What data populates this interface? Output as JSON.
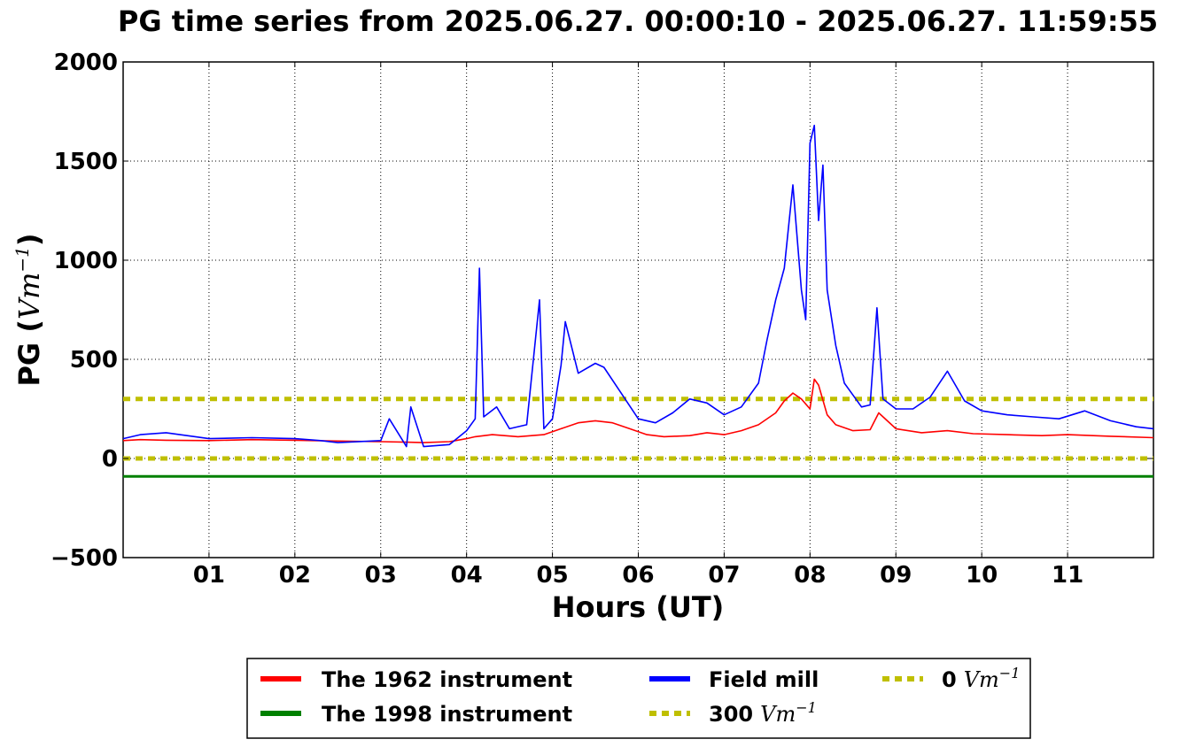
{
  "chart_data": {
    "type": "line",
    "title": "PG time series from 2025.06.27. 00:00:10 - 2025.06.27. 11:59:55",
    "xlabel": "Hours (UT)",
    "ylabel": {
      "main": "PG (",
      "unit_base": "Vm",
      "unit_exp": "−1",
      "close": ")"
    },
    "xlim": [
      0,
      12
    ],
    "ylim": [
      -500,
      2000
    ],
    "x_ticks": [
      1,
      2,
      3,
      4,
      5,
      6,
      7,
      8,
      9,
      10,
      11
    ],
    "x_tick_labels": [
      "01",
      "02",
      "03",
      "04",
      "05",
      "06",
      "07",
      "08",
      "09",
      "10",
      "11"
    ],
    "y_ticks": [
      -500,
      0,
      500,
      1000,
      1500,
      2000
    ],
    "y_tick_labels": [
      "−500",
      "0",
      "500",
      "1000",
      "1500",
      "2000"
    ],
    "grid": true,
    "legend_placement": "below",
    "series": [
      {
        "name": "The 1962 instrument",
        "color": "#ff0000",
        "x": [
          0.0,
          0.2,
          0.5,
          1.0,
          1.5,
          2.0,
          2.5,
          3.0,
          3.3,
          3.5,
          3.8,
          4.0,
          4.1,
          4.3,
          4.6,
          4.9,
          5.1,
          5.3,
          5.5,
          5.7,
          5.9,
          6.1,
          6.3,
          6.6,
          6.8,
          7.0,
          7.2,
          7.4,
          7.6,
          7.7,
          7.8,
          7.9,
          8.0,
          8.05,
          8.1,
          8.2,
          8.3,
          8.5,
          8.7,
          8.8,
          9.0,
          9.3,
          9.6,
          9.9,
          10.3,
          10.7,
          11.0,
          11.5,
          12.0
        ],
        "values": [
          90,
          95,
          92,
          90,
          95,
          92,
          88,
          85,
          82,
          80,
          85,
          100,
          110,
          120,
          110,
          120,
          150,
          180,
          190,
          180,
          150,
          120,
          110,
          115,
          130,
          120,
          140,
          170,
          230,
          290,
          330,
          300,
          250,
          400,
          370,
          220,
          170,
          140,
          145,
          230,
          150,
          130,
          140,
          125,
          120,
          115,
          120,
          112,
          105
        ]
      },
      {
        "name": "The 1998 instrument",
        "color": "#008000",
        "x": [
          0,
          12
        ],
        "values": [
          -90,
          -90
        ]
      },
      {
        "name": "Field mill",
        "color": "#0000ff",
        "x": [
          0.0,
          0.2,
          0.5,
          1.0,
          1.5,
          2.0,
          2.3,
          2.5,
          3.0,
          3.1,
          3.3,
          3.35,
          3.5,
          3.8,
          4.0,
          4.1,
          4.15,
          4.2,
          4.35,
          4.5,
          4.7,
          4.85,
          4.9,
          5.0,
          5.1,
          5.15,
          5.3,
          5.5,
          5.6,
          5.8,
          6.0,
          6.2,
          6.4,
          6.6,
          6.8,
          7.0,
          7.2,
          7.4,
          7.5,
          7.6,
          7.7,
          7.8,
          7.9,
          7.95,
          8.0,
          8.05,
          8.1,
          8.15,
          8.2,
          8.3,
          8.4,
          8.5,
          8.6,
          8.7,
          8.78,
          8.85,
          9.0,
          9.2,
          9.4,
          9.6,
          9.8,
          10.0,
          10.3,
          10.6,
          10.9,
          11.2,
          11.5,
          11.8,
          12.0
        ],
        "values": [
          100,
          120,
          130,
          100,
          105,
          100,
          90,
          80,
          90,
          200,
          60,
          260,
          60,
          70,
          140,
          200,
          960,
          210,
          260,
          150,
          170,
          800,
          150,
          200,
          470,
          690,
          430,
          480,
          460,
          330,
          200,
          180,
          230,
          300,
          280,
          220,
          260,
          380,
          600,
          800,
          960,
          1380,
          850,
          700,
          1590,
          1680,
          1200,
          1480,
          850,
          570,
          380,
          320,
          260,
          270,
          760,
          300,
          250,
          250,
          310,
          440,
          290,
          240,
          220,
          210,
          200,
          240,
          190,
          160,
          150
        ]
      },
      {
        "name": "300",
        "legend_unit_base": "Vm",
        "legend_unit_exp": "−1",
        "color": "#bfbf00",
        "dashed": true,
        "x": [
          0,
          12
        ],
        "values": [
          300,
          300
        ]
      },
      {
        "name": "0",
        "legend_unit_base": "Vm",
        "legend_unit_exp": "−1",
        "color": "#bfbf00",
        "dashed": true,
        "x": [
          0,
          12
        ],
        "values": [
          0,
          0
        ]
      }
    ]
  }
}
